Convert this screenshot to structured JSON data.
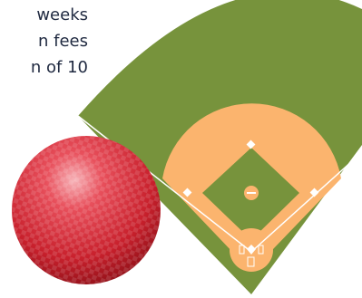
{
  "text_lines": [
    "weeks",
    "n fees",
    "n of 10"
  ]
}
